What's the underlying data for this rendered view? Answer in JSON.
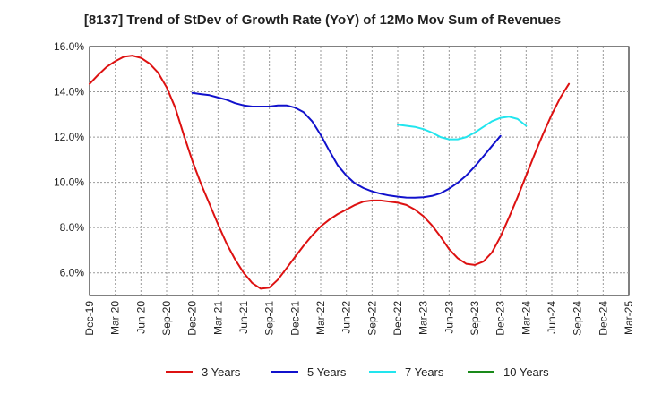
{
  "chart_data": {
    "type": "line",
    "title": "[8137]  Trend of StDev of Growth Rate (YoY) of 12Mo Mov Sum of Revenues",
    "xlabel": "",
    "ylabel": "",
    "ylim": [
      5.0,
      16.0
    ],
    "yticks": [
      6.0,
      8.0,
      10.0,
      12.0,
      14.0,
      16.0
    ],
    "ytick_labels": [
      "6.0%",
      "8.0%",
      "10.0%",
      "12.0%",
      "14.0%",
      "16.0%"
    ],
    "x_labels": [
      "Dec-19",
      "Mar-20",
      "Jun-20",
      "Sep-20",
      "Dec-20",
      "Mar-21",
      "Jun-21",
      "Sep-21",
      "Dec-21",
      "Mar-22",
      "Jun-22",
      "Sep-22",
      "Dec-22",
      "Mar-23",
      "Jun-23",
      "Sep-23",
      "Dec-23",
      "Mar-24",
      "Jun-24",
      "Sep-24",
      "Dec-24",
      "Mar-25"
    ],
    "grid": true,
    "legend_position": "bottom",
    "series": [
      {
        "name": "3 Years",
        "color": "#dd1111",
        "start": 0,
        "values": [
          14.35,
          14.75,
          15.1,
          15.35,
          15.55,
          15.6,
          15.5,
          15.25,
          14.85,
          14.2,
          13.3,
          12.1,
          10.95,
          9.95,
          9.05,
          8.15,
          7.3,
          6.6,
          6.0,
          5.55,
          5.3,
          5.35,
          5.7,
          6.2,
          6.7,
          7.2,
          7.65,
          8.05,
          8.35,
          8.6,
          8.8,
          9.0,
          9.15,
          9.2,
          9.2,
          9.15,
          9.1,
          9.0,
          8.8,
          8.5,
          8.1,
          7.6,
          7.05,
          6.65,
          6.4,
          6.35,
          6.5,
          6.9,
          7.6,
          8.45,
          9.35,
          10.3,
          11.25,
          12.15,
          13.0,
          13.75,
          14.35
        ]
      },
      {
        "name": "5 Years",
        "color": "#1111cc",
        "start": 12,
        "values": [
          13.95,
          13.9,
          13.85,
          13.75,
          13.65,
          13.5,
          13.4,
          13.35,
          13.35,
          13.35,
          13.4,
          13.4,
          13.3,
          13.1,
          12.7,
          12.1,
          11.4,
          10.75,
          10.3,
          9.95,
          9.75,
          9.6,
          9.5,
          9.42,
          9.37,
          9.33,
          9.32,
          9.34,
          9.4,
          9.52,
          9.72,
          9.98,
          10.3,
          10.7,
          11.15,
          11.6,
          12.05
        ]
      },
      {
        "name": "7 Years",
        "color": "#22e5ee",
        "start": 36,
        "values": [
          12.55,
          12.5,
          12.45,
          12.35,
          12.2,
          12.0,
          11.9,
          11.9,
          12.0,
          12.2,
          12.45,
          12.7,
          12.85,
          12.9,
          12.8,
          12.5
        ]
      },
      {
        "name": "10 Years",
        "color": "#1a8a1a",
        "start": 0,
        "values": []
      }
    ]
  }
}
